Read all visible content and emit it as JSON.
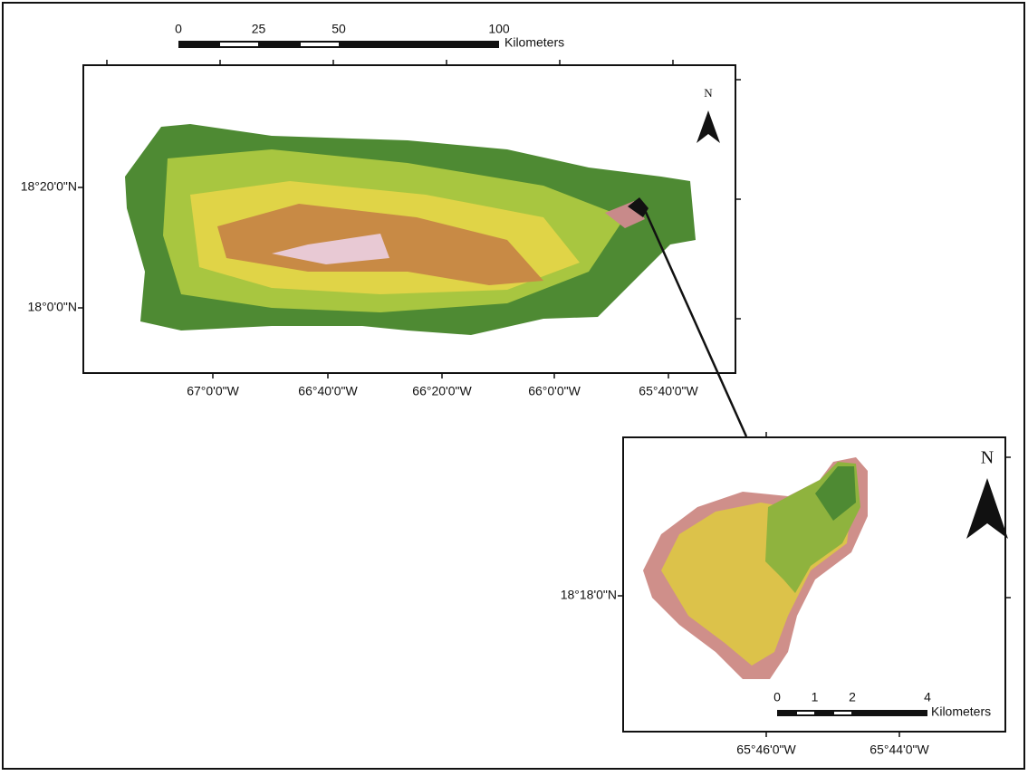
{
  "main_map": {
    "scale_bar": {
      "ticks": [
        0,
        25,
        50,
        100
      ],
      "unit": "Kilometers"
    },
    "north": "N",
    "lat_labels": [
      "18°20'0\"N",
      "18°0'0\"N"
    ],
    "lon_labels": [
      "67°0'0\"W",
      "66°40'0\"W",
      "66°20'0\"W",
      "66°0'0\"W",
      "65°40'0\"W"
    ]
  },
  "inset_map": {
    "scale_bar": {
      "ticks": [
        0,
        1,
        2,
        4
      ],
      "unit": "Kilometers"
    },
    "north": "N",
    "lat_labels": [
      "18°18'0\"N"
    ],
    "lon_labels": [
      "65°46'0\"W",
      "65°44'0\"W"
    ]
  }
}
